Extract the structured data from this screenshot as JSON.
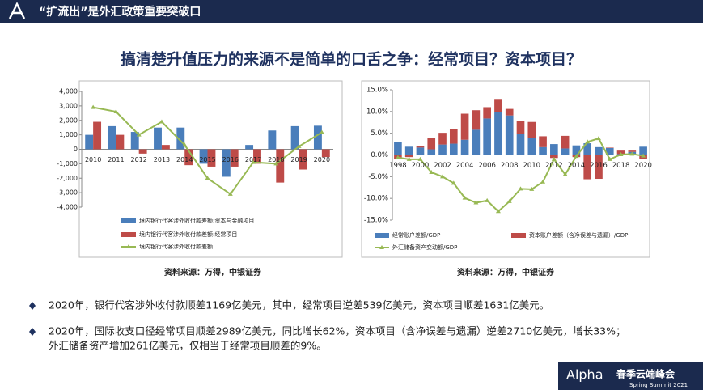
{
  "header": {
    "title": "“扩流出”是外汇政策重要突破口"
  },
  "heading": "搞清楚升值压力的来源不是简单的口舌之争：经常项目？资本项目？",
  "sources": [
    "资料来源：万得，中银证券",
    "资料来源：万得，中银证券"
  ],
  "bullets": [
    {
      "lines": [
        "2020年，银行代客涉外收付款顺差1169亿美元，其中，经常项目逆差539亿美元，资本项目顺差1631亿美元。"
      ]
    },
    {
      "lines": [
        "2020年，国际收支口径经常项目顺差2989亿美元，同比增长62%，资本项目（含净误差与遗漏）逆差2710亿美元，增长33%；",
        "外汇储备资产增加261亿美元，仅相当于经常项目顺差的9%。"
      ]
    }
  ],
  "footer": {
    "brand": "Alpha",
    "event": "春季云端峰会",
    "subtitle": "Spring Summit 2021"
  },
  "chart_data": [
    {
      "type": "bar",
      "stacked": false,
      "grid": false,
      "legend": "bottom",
      "categories": [
        "2010",
        "2011",
        "2012",
        "2013",
        "2014",
        "2015",
        "2016",
        "2017",
        "2018",
        "2019",
        "2020"
      ],
      "ylim": [
        -4000,
        4000
      ],
      "yticks": [
        {
          "value": 4000,
          "label": "4,000"
        },
        {
          "value": 3000,
          "label": "3,000"
        },
        {
          "value": 2000,
          "label": "2,000"
        },
        {
          "value": 1000,
          "label": "1,000"
        },
        0,
        {
          "value": -1000,
          "label": "-1,000"
        },
        {
          "value": -2000,
          "label": "-2,000"
        },
        {
          "value": -3000,
          "label": "-3,000"
        },
        {
          "value": -4000,
          "label": "-4,000"
        }
      ],
      "series": [
        {
          "name": "境内银行代客涉外收付款差额:资本与金融项目",
          "color": "#4a7ebb",
          "values": [
            1000,
            1600,
            1200,
            1500,
            1500,
            -1000,
            -1900,
            300,
            1300,
            1600,
            1631
          ]
        },
        {
          "name": "境内银行代客涉外收付款差额:经常项目",
          "color": "#be4b48",
          "values": [
            1900,
            1000,
            -300,
            300,
            -1100,
            -1200,
            -1200,
            -1000,
            -2300,
            -1400,
            -539
          ]
        },
        {
          "name": "境内银行代客涉外收付款差额",
          "color": "#98b954",
          "type": "line",
          "values": [
            2900,
            2600,
            1000,
            1900,
            300,
            -2000,
            -3100,
            -900,
            -1000,
            200,
            1169
          ]
        }
      ]
    },
    {
      "type": "bar",
      "stacked": true,
      "grid": false,
      "legend": "bottom",
      "categories": [
        "1998",
        null,
        "2000",
        null,
        "2002",
        null,
        "2004",
        null,
        "2006",
        null,
        "2008",
        null,
        "2010",
        null,
        "2012",
        null,
        "2014",
        null,
        "2016",
        null,
        "2018",
        null,
        "2020"
      ],
      "ylim": [
        -15,
        15
      ],
      "yticks": [
        {
          "value": 15,
          "label": "15.0%"
        },
        {
          "value": 10,
          "label": "10.0%"
        },
        {
          "value": 5,
          "label": "5.0%"
        },
        {
          "value": 0,
          "label": "0.0%"
        },
        {
          "value": -5,
          "label": "-5.0%"
        },
        {
          "value": -10,
          "label": "-10.0%"
        },
        {
          "value": -15,
          "label": "-15.0%"
        }
      ],
      "series": [
        {
          "name": "经常账户差额/GDP",
          "color": "#4a7ebb",
          "values": [
            3.0,
            1.9,
            1.7,
            1.3,
            2.4,
            2.6,
            3.5,
            5.8,
            8.4,
            9.9,
            9.1,
            4.8,
            3.9,
            1.8,
            2.5,
            1.5,
            2.2,
            2.7,
            1.8,
            1.6,
            0.2,
            0.7,
            1.9
          ]
        },
        {
          "name": "资本账户差额（含净误差与遗漏）/GDP",
          "color": "#be4b48",
          "values": [
            -1.0,
            -0.5,
            0.3,
            2.7,
            2.7,
            3.4,
            6.0,
            4.5,
            2.6,
            3.0,
            1.5,
            3.1,
            3.7,
            2.5,
            -0.7,
            2.9,
            -0.5,
            -5.6,
            -5.5,
            0.1,
            0.8,
            0.3,
            -1.0
          ]
        },
        {
          "name": "外汇储备资产变动额/GDP",
          "color": "#98b954",
          "type": "line",
          "values": [
            -0.6,
            -1.0,
            -1.0,
            -4.0,
            -5.0,
            -6.5,
            -9.9,
            -11.0,
            -10.5,
            -13.0,
            -10.7,
            -7.8,
            -7.9,
            -6.2,
            -1.0,
            -4.5,
            -0.3,
            3.0,
            3.8,
            -1.0,
            0.1,
            0.2,
            -0.2
          ]
        }
      ]
    }
  ]
}
